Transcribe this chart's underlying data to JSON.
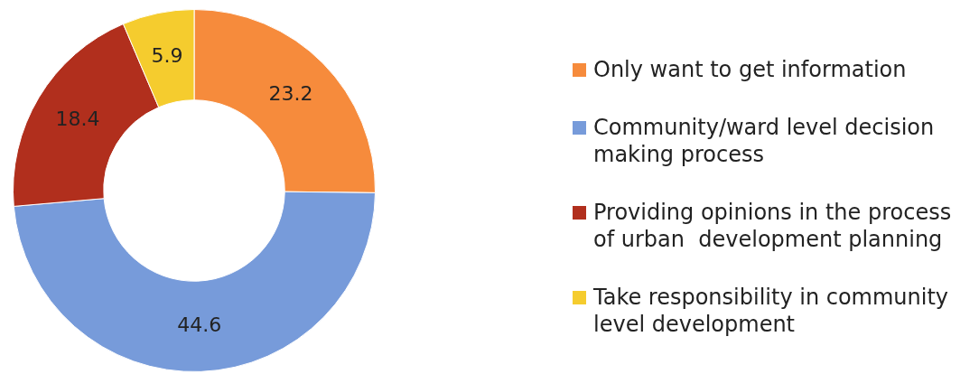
{
  "chart_data": {
    "type": "donut",
    "categories": [
      "Only want to get information",
      "Community/ward level decision making process",
      "Providing opinions in the process of urban  development planning",
      "Take responsibility in community level development"
    ],
    "values": [
      23.2,
      44.6,
      18.4,
      5.9
    ],
    "colors": [
      "#f68b3c",
      "#779bda",
      "#b12f1d",
      "#f5cc2e"
    ],
    "data_labels": true,
    "legend": "right"
  }
}
